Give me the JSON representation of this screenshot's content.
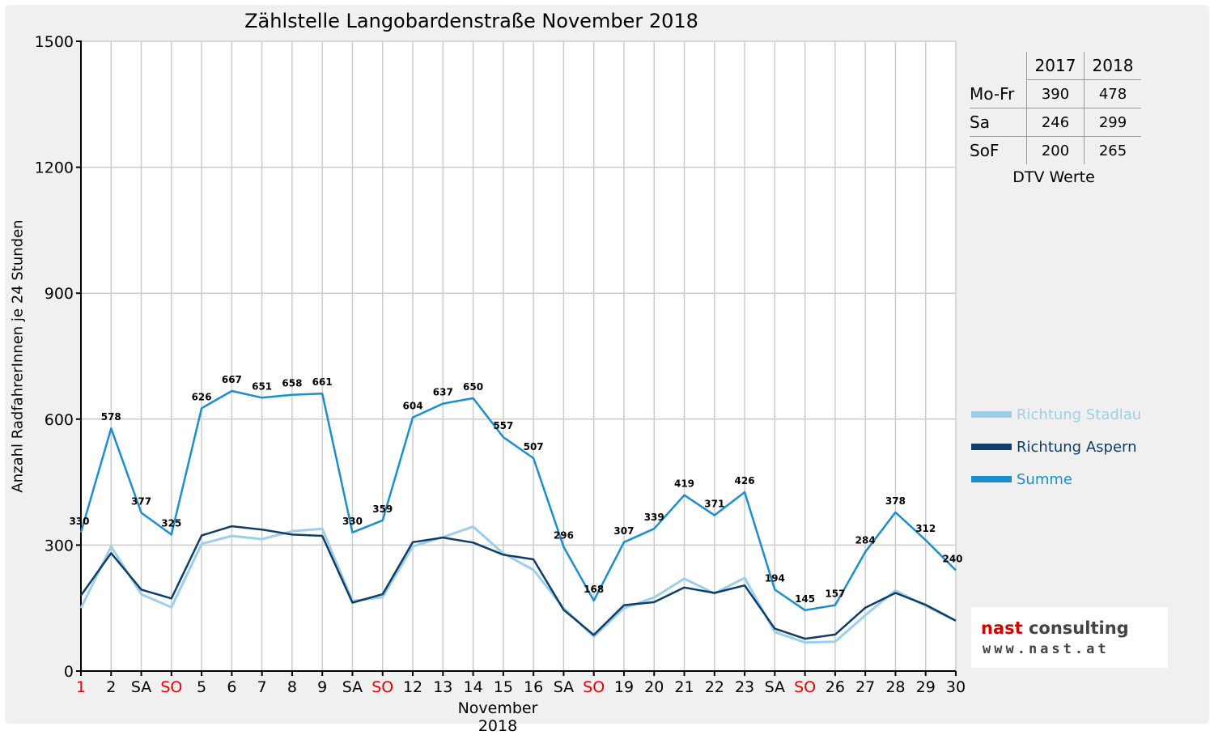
{
  "colors": {
    "stadlau": "#9ecfea",
    "aspern": "#0e3e66",
    "summe": "#1a8fd0",
    "weekend_red": "#ee0000",
    "grid": "#cccccc",
    "logo_red": "#d40000",
    "logo_gray": "#444444"
  },
  "chart_data": {
    "type": "line",
    "title": "Zählstelle Langobardenstraße November 2018",
    "xlabel": "November 2018",
    "ylabel": "Anzahl RadfahrerInnen je 24 Stunden",
    "ylim": [
      0,
      1500
    ],
    "yticks": [
      0,
      300,
      600,
      900,
      1200,
      1500
    ],
    "grid": true,
    "legend_position": "right",
    "categories": [
      "1",
      "2",
      "SA",
      "SO",
      "5",
      "6",
      "7",
      "8",
      "9",
      "SA",
      "SO",
      "12",
      "13",
      "14",
      "15",
      "16",
      "SA",
      "SO",
      "19",
      "20",
      "21",
      "22",
      "23",
      "SA",
      "SO",
      "26",
      "27",
      "28",
      "29",
      "30"
    ],
    "red_categories": [
      0,
      3,
      10,
      17,
      24
    ],
    "series": [
      {
        "name": "Richtung Stadlau",
        "color_key": "stadlau",
        "values": [
          150,
          297,
          183,
          152,
          303,
          322,
          314,
          333,
          339,
          167,
          176,
          297,
          319,
          344,
          280,
          241,
          150,
          82,
          150,
          175,
          220,
          185,
          222,
          93,
          68,
          70,
          133,
          192,
          155,
          120
        ]
      },
      {
        "name": "Richtung Aspern",
        "color_key": "aspern",
        "values": [
          180,
          281,
          194,
          173,
          323,
          345,
          337,
          325,
          322,
          163,
          183,
          307,
          318,
          306,
          277,
          266,
          146,
          86,
          157,
          164,
          199,
          186,
          204,
          101,
          77,
          87,
          151,
          186,
          158,
          120
        ]
      },
      {
        "name": "Summe",
        "color_key": "summe",
        "values": [
          330,
          578,
          377,
          325,
          626,
          667,
          651,
          658,
          661,
          330,
          359,
          604,
          637,
          650,
          557,
          507,
          296,
          168,
          307,
          339,
          419,
          371,
          426,
          194,
          145,
          157,
          284,
          378,
          312,
          240
        ]
      }
    ]
  },
  "dtv_table": {
    "columns": [
      "2017",
      "2018"
    ],
    "rows": [
      {
        "label": "Mo-Fr",
        "v2017": "390",
        "v2018": "478"
      },
      {
        "label": "Sa",
        "v2017": "246",
        "v2018": "299"
      },
      {
        "label": "SoF",
        "v2017": "200",
        "v2018": "265"
      }
    ],
    "caption": "DTV Werte"
  },
  "logo": {
    "word1": "nast",
    "word2": "consulting",
    "url": "www.nast.at"
  }
}
